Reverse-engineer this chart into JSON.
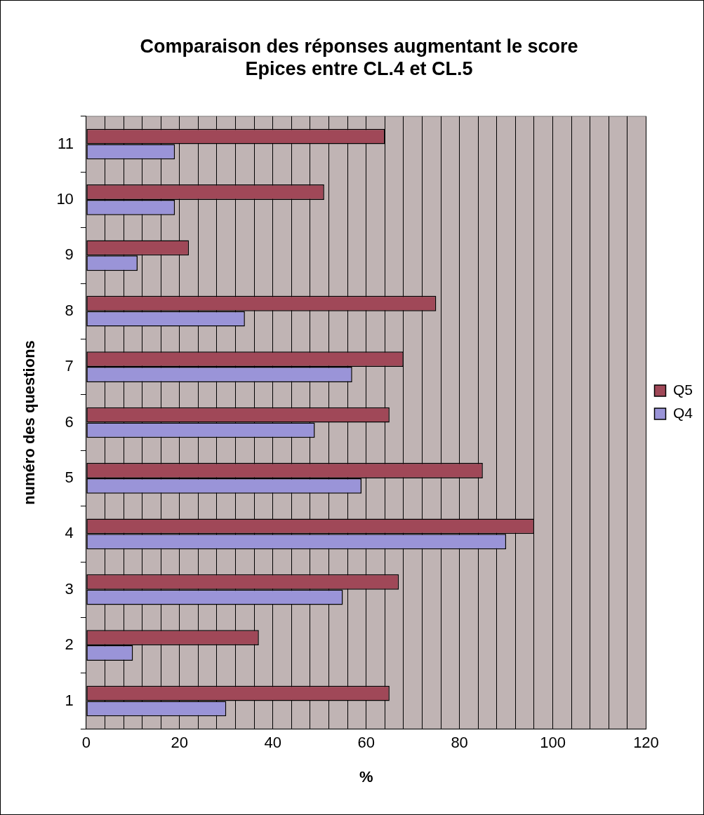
{
  "chart_data": {
    "type": "bar",
    "orientation": "horizontal",
    "title": "Comparaison des réponses augmentant le score\nEpices entre CL.4 et CL.5",
    "xlabel": "%",
    "ylabel": "numéro des questions",
    "categories": [
      "11",
      "10",
      "9",
      "8",
      "7",
      "6",
      "5",
      "4",
      "3",
      "2",
      "1"
    ],
    "series": [
      {
        "name": "Q5",
        "color": "#a04858",
        "values": [
          64,
          51,
          22,
          75,
          68,
          65,
          85,
          96,
          67,
          37,
          65
        ]
      },
      {
        "name": "Q4",
        "color": "#9a94d8",
        "values": [
          19,
          19,
          11,
          34,
          57,
          49,
          59,
          90,
          55,
          10,
          30
        ]
      }
    ],
    "xlim": [
      0,
      120
    ],
    "xticks": [
      0,
      {
        "value": 4,
        "label": null
      },
      {
        "value": 8,
        "label": null
      },
      {
        "value": 12,
        "label": null
      },
      {
        "value": 16,
        "label": null
      },
      20,
      {
        "value": 24,
        "label": null
      },
      {
        "value": 28,
        "label": null
      },
      {
        "value": 32,
        "label": null
      },
      {
        "value": 36,
        "label": null
      },
      40,
      {
        "value": 44,
        "label": null
      },
      {
        "value": 48,
        "label": null
      },
      {
        "value": 52,
        "label": null
      },
      {
        "value": 56,
        "label": null
      },
      60,
      {
        "value": 64,
        "label": null
      },
      {
        "value": 68,
        "label": null
      },
      {
        "value": 72,
        "label": null
      },
      {
        "value": 76,
        "label": null
      },
      80,
      {
        "value": 84,
        "label": null
      },
      {
        "value": 88,
        "label": null
      },
      {
        "value": 92,
        "label": null
      },
      {
        "value": 96,
        "label": null
      },
      100,
      {
        "value": 104,
        "label": null
      },
      {
        "value": 108,
        "label": null
      },
      {
        "value": 112,
        "label": null
      },
      {
        "value": 116,
        "label": null
      },
      120
    ],
    "grid": "x",
    "legend": "right"
  }
}
